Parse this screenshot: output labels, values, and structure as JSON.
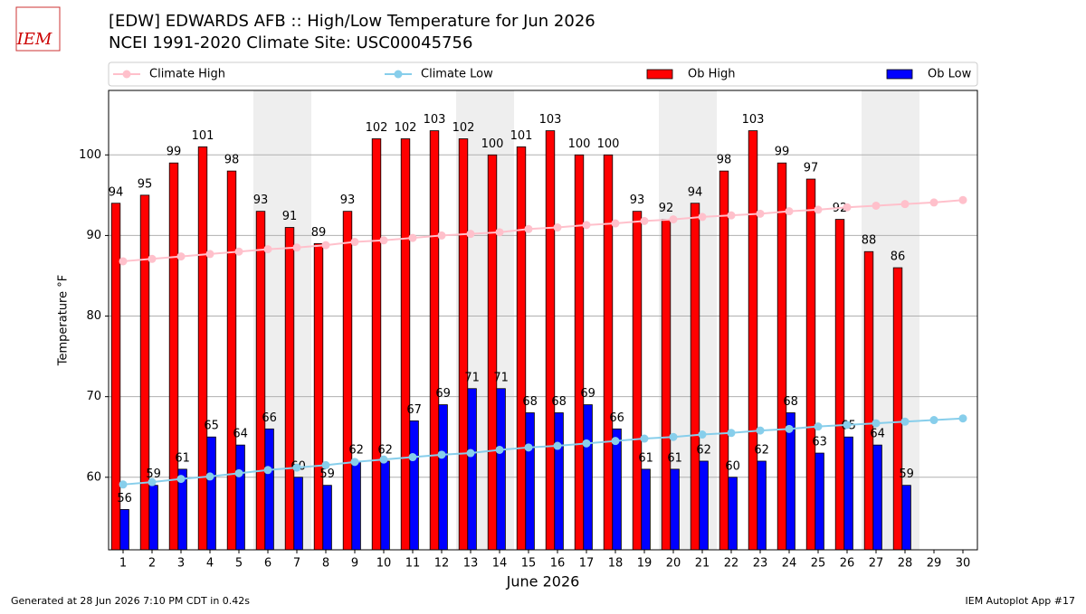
{
  "chart_data": {
    "type": "bar_line",
    "title": "[EDW] EDWARDS AFB :: High/Low Temperature for Jun 2026",
    "subtitle": "NCEI 1991-2020 Climate Site: USC00045756",
    "logo_text": "IEM",
    "x_label": "June 2026",
    "y_label": "Temperature °F",
    "footer_left": "Generated at 28 Jun 2026 7:10 PM CDT in 0.42s",
    "footer_right": "IEM Autoplot App #17",
    "x": [
      1,
      2,
      3,
      4,
      5,
      6,
      7,
      8,
      9,
      10,
      11,
      12,
      13,
      14,
      15,
      16,
      17,
      18,
      19,
      20,
      21,
      22,
      23,
      24,
      25,
      26,
      27,
      28,
      29,
      30
    ],
    "xlim": [
      0.5,
      30.5
    ],
    "xticks": [
      1,
      2,
      3,
      4,
      5,
      6,
      7,
      8,
      9,
      10,
      11,
      12,
      13,
      14,
      15,
      16,
      17,
      18,
      19,
      20,
      21,
      22,
      23,
      24,
      25,
      26,
      27,
      28,
      29,
      30
    ],
    "ylim": [
      51,
      108
    ],
    "yticks": [
      60,
      70,
      80,
      90,
      100
    ],
    "grid": true,
    "shaded_days": [
      6,
      7,
      13,
      14,
      20,
      21,
      27,
      28
    ],
    "shade_color": "#eeeeee",
    "series": [
      {
        "name": "Climate High",
        "kind": "line",
        "color": "#ffc0cb",
        "values": [
          86.8,
          87.1,
          87.4,
          87.7,
          88.0,
          88.3,
          88.5,
          88.8,
          89.2,
          89.4,
          89.7,
          90.0,
          90.2,
          90.4,
          90.8,
          91.0,
          91.3,
          91.5,
          91.8,
          92.0,
          92.3,
          92.5,
          92.7,
          93.0,
          93.2,
          93.5,
          93.7,
          93.9,
          94.1,
          94.4
        ]
      },
      {
        "name": "Climate Low",
        "kind": "line",
        "color": "#87ceeb",
        "values": [
          59.1,
          59.4,
          59.8,
          60.1,
          60.5,
          60.9,
          61.2,
          61.5,
          61.9,
          62.2,
          62.5,
          62.8,
          63.0,
          63.4,
          63.7,
          63.9,
          64.2,
          64.5,
          64.8,
          65.0,
          65.3,
          65.5,
          65.8,
          66.0,
          66.3,
          66.5,
          66.7,
          66.9,
          67.1,
          67.3
        ]
      },
      {
        "name": "Ob High",
        "kind": "bar",
        "color": "#ff0000",
        "values": [
          94,
          95,
          99,
          101,
          98,
          93,
          91,
          89,
          93,
          102,
          102,
          103,
          102,
          100,
          101,
          103,
          100,
          100,
          93,
          92,
          94,
          98,
          103,
          99,
          97,
          92,
          88,
          86,
          null,
          null
        ]
      },
      {
        "name": "Ob Low",
        "kind": "bar",
        "color": "#0000ff",
        "values": [
          56,
          59,
          61,
          65,
          64,
          66,
          60,
          59,
          62,
          62,
          67,
          69,
          71,
          71,
          68,
          68,
          69,
          66,
          61,
          61,
          62,
          60,
          62,
          68,
          63,
          65,
          64,
          59,
          null,
          null
        ]
      }
    ]
  }
}
